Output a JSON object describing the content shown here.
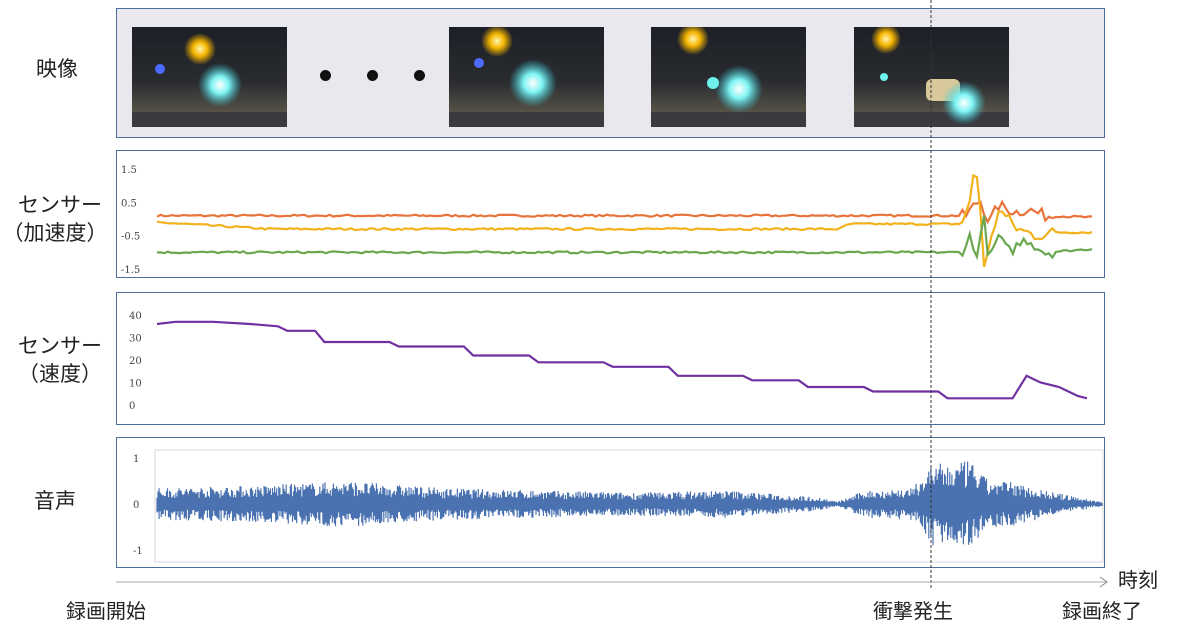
{
  "rows": {
    "video": "映像",
    "accel_line1": "センサー",
    "accel_line2": "（加速度）",
    "speed_line1": "センサー",
    "speed_line2": "（速度）",
    "audio": "音声"
  },
  "frame_icons": [
    "night-camera-frame",
    "night-camera-frame",
    "night-camera-frame",
    "night-camera-frame-impact"
  ],
  "time_axis": {
    "label": "時刻",
    "start": "録画開始",
    "impact": "衝撃発生",
    "end": "録画終了"
  },
  "accel_ticks": [
    "1.5",
    "0.5",
    "-0.5",
    "-1.5"
  ],
  "speed_ticks": [
    "40",
    "30",
    "20",
    "10",
    "0"
  ],
  "audio_ticks": [
    "1",
    "0",
    "-1"
  ],
  "colors": {
    "accel_x": "#e8743b",
    "accel_y": "#f2b21c",
    "accel_z": "#6aa84f",
    "speed": "#7030a0",
    "audio": "#4a72b0",
    "border": "#4d6e9b"
  },
  "chart_data": [
    {
      "type": "line",
      "title": "",
      "ylim": [
        -1.5,
        1.5
      ],
      "series": [
        {
          "color_key": "accel_x",
          "points": [
            [
              0,
              0.1
            ],
            [
              0.85,
              0.1
            ],
            [
              0.865,
              0.1
            ],
            [
              0.88,
              0.6
            ],
            [
              0.89,
              -0.1
            ],
            [
              0.9,
              0.4
            ],
            [
              0.92,
              0.2
            ],
            [
              0.93,
              0.3
            ],
            [
              0.95,
              0.1
            ],
            [
              1,
              0.05
            ]
          ]
        },
        {
          "color_key": "accel_y",
          "points": [
            [
              0,
              -0.1
            ],
            [
              0.12,
              -0.3
            ],
            [
              0.73,
              -0.3
            ],
            [
              0.74,
              -0.15
            ],
            [
              0.86,
              -0.15
            ],
            [
              0.87,
              0.5
            ],
            [
              0.875,
              1.8
            ],
            [
              0.88,
              0.5
            ],
            [
              0.885,
              -1.5
            ],
            [
              0.9,
              0.3
            ],
            [
              0.92,
              -0.3
            ],
            [
              0.94,
              -0.5
            ],
            [
              0.96,
              -0.4
            ],
            [
              1,
              -0.4
            ]
          ]
        },
        {
          "color_key": "accel_z",
          "points": [
            [
              0,
              -1.0
            ],
            [
              0.86,
              -1.0
            ],
            [
              0.87,
              -0.5
            ],
            [
              0.875,
              -1.2
            ],
            [
              0.885,
              0.0
            ],
            [
              0.89,
              -1.3
            ],
            [
              0.9,
              -0.5
            ],
            [
              0.91,
              -1.0
            ],
            [
              0.93,
              -0.6
            ],
            [
              0.95,
              -1.0
            ],
            [
              1,
              -0.9
            ]
          ]
        }
      ]
    },
    {
      "type": "line",
      "title": "",
      "ylim": [
        0,
        40
      ],
      "series": [
        {
          "color_key": "speed",
          "points": [
            [
              0,
              36
            ],
            [
              0.02,
              37
            ],
            [
              0.06,
              37
            ],
            [
              0.1,
              36
            ],
            [
              0.13,
              35
            ],
            [
              0.14,
              33
            ],
            [
              0.17,
              33
            ],
            [
              0.18,
              28
            ],
            [
              0.25,
              28
            ],
            [
              0.26,
              26
            ],
            [
              0.33,
              26
            ],
            [
              0.34,
              22
            ],
            [
              0.4,
              22
            ],
            [
              0.41,
              19
            ],
            [
              0.48,
              19
            ],
            [
              0.49,
              17
            ],
            [
              0.55,
              17
            ],
            [
              0.56,
              13
            ],
            [
              0.63,
              13
            ],
            [
              0.64,
              11
            ],
            [
              0.69,
              11
            ],
            [
              0.7,
              8
            ],
            [
              0.76,
              8
            ],
            [
              0.77,
              6
            ],
            [
              0.84,
              6
            ],
            [
              0.85,
              3
            ],
            [
              0.91,
              3
            ],
            [
              0.92,
              3
            ],
            [
              0.935,
              13
            ],
            [
              0.95,
              10
            ],
            [
              0.97,
              8
            ],
            [
              0.98,
              6
            ],
            [
              0.99,
              4
            ],
            [
              1.0,
              3
            ]
          ]
        }
      ]
    },
    {
      "type": "area",
      "title": "",
      "ylim": [
        -1,
        1
      ],
      "series": [
        {
          "color_key": "audio",
          "envelope": [
            [
              0,
              0.35
            ],
            [
              0.1,
              0.4
            ],
            [
              0.2,
              0.5
            ],
            [
              0.3,
              0.35
            ],
            [
              0.4,
              0.3
            ],
            [
              0.5,
              0.25
            ],
            [
              0.6,
              0.3
            ],
            [
              0.7,
              0.15
            ],
            [
              0.72,
              0.05
            ],
            [
              0.75,
              0.3
            ],
            [
              0.8,
              0.35
            ],
            [
              0.82,
              0.9
            ],
            [
              0.84,
              0.85
            ],
            [
              0.86,
              0.95
            ],
            [
              0.88,
              0.5
            ],
            [
              0.9,
              0.5
            ],
            [
              0.95,
              0.25
            ],
            [
              1,
              0.05
            ]
          ]
        }
      ]
    }
  ]
}
